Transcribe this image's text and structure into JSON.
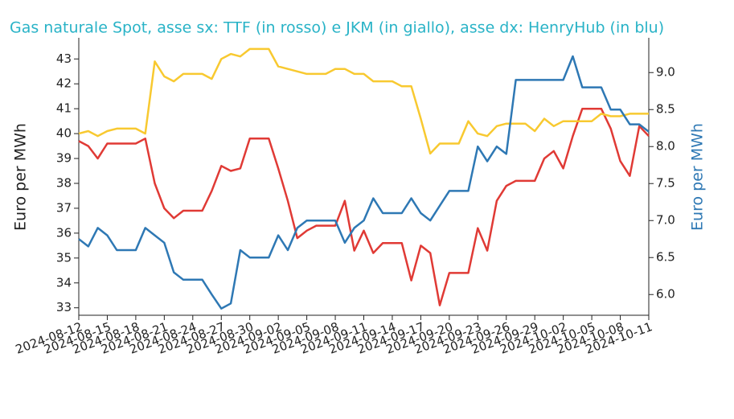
{
  "chart_data": {
    "type": "line",
    "title": "Gas naturale Spot, asse sx: TTF (in rosso) e JKM (in giallo), asse dx: HenryHub (in blu)",
    "y_label": "Euro per MWh",
    "y2_label": "Euro per MWh",
    "x": [
      "2024-08-12",
      "2024-08-13",
      "2024-08-14",
      "2024-08-15",
      "2024-08-16",
      "2024-08-17",
      "2024-08-18",
      "2024-08-19",
      "2024-08-20",
      "2024-08-21",
      "2024-08-22",
      "2024-08-23",
      "2024-08-24",
      "2024-08-25",
      "2024-08-26",
      "2024-08-27",
      "2024-08-28",
      "2024-08-29",
      "2024-08-30",
      "2024-08-31",
      "2024-09-01",
      "2024-09-02",
      "2024-09-03",
      "2024-09-04",
      "2024-09-05",
      "2024-09-06",
      "2024-09-07",
      "2024-09-08",
      "2024-09-09",
      "2024-09-10",
      "2024-09-11",
      "2024-09-12",
      "2024-09-13",
      "2024-09-14",
      "2024-09-15",
      "2024-09-16",
      "2024-09-17",
      "2024-09-18",
      "2024-09-19",
      "2024-09-20",
      "2024-09-21",
      "2024-09-22",
      "2024-09-23",
      "2024-09-24",
      "2024-09-25",
      "2024-09-26",
      "2024-09-27",
      "2024-09-28",
      "2024-09-29",
      "2024-09-30",
      "2024-10-01",
      "2024-10-02",
      "2024-10-03",
      "2024-10-04",
      "2024-10-05",
      "2024-10-06",
      "2024-10-07",
      "2024-10-08",
      "2024-10-09",
      "2024-10-10",
      "2024-10-11"
    ],
    "series": [
      {
        "name": "TTF",
        "color": "#e03a35",
        "values": [
          39.7,
          39.5,
          39.0,
          39.6,
          39.6,
          39.6,
          39.6,
          39.8,
          38.0,
          37.0,
          36.6,
          36.9,
          36.9,
          36.9,
          37.7,
          38.7,
          38.5,
          38.6,
          39.8,
          39.8,
          39.8,
          38.6,
          37.3,
          35.8,
          36.1,
          36.3,
          36.3,
          36.3,
          37.3,
          35.3,
          36.1,
          35.2,
          35.6,
          35.6,
          35.6,
          34.1,
          35.5,
          35.2,
          33.1,
          34.4,
          34.4,
          34.4,
          36.2,
          35.3,
          37.3,
          37.9,
          38.1,
          38.1,
          38.1,
          39.0,
          39.3,
          38.6,
          39.9,
          41.0,
          41.0,
          41.0,
          40.2,
          38.9,
          38.3,
          40.3,
          39.9
        ]
      },
      {
        "name": "JKM",
        "color": "#f8c930",
        "values": [
          40.0,
          40.1,
          39.9,
          40.1,
          40.2,
          40.2,
          40.2,
          40.0,
          42.9,
          42.3,
          42.1,
          42.4,
          42.4,
          42.4,
          42.2,
          43.0,
          43.2,
          43.1,
          43.4,
          43.4,
          43.4,
          42.7,
          42.6,
          42.5,
          42.4,
          42.4,
          42.4,
          42.6,
          42.6,
          42.4,
          42.4,
          42.1,
          42.1,
          42.1,
          41.9,
          41.9,
          40.6,
          39.2,
          39.6,
          39.6,
          39.6,
          40.5,
          40.0,
          39.9,
          40.3,
          40.4,
          40.4,
          40.4,
          40.1,
          40.6,
          40.3,
          40.5,
          40.5,
          40.5,
          40.5,
          40.8,
          40.7,
          40.7,
          40.8,
          40.8,
          40.8
        ]
      },
      {
        "name": "HenryHub",
        "color": "#2e78b4",
        "axis": "y2",
        "values": [
          6.75,
          6.65,
          6.9,
          6.8,
          6.6,
          6.6,
          6.6,
          6.9,
          6.8,
          6.7,
          6.3,
          6.2,
          6.2,
          6.2,
          6.0,
          5.81,
          5.88,
          6.6,
          6.5,
          6.5,
          6.5,
          6.8,
          6.6,
          6.9,
          7.0,
          7.0,
          7.0,
          7.0,
          6.7,
          6.9,
          7.0,
          7.3,
          7.1,
          7.1,
          7.1,
          7.3,
          7.1,
          7.0,
          7.2,
          7.4,
          7.4,
          7.4,
          8.0,
          7.8,
          8.0,
          7.9,
          8.9,
          8.9,
          8.9,
          8.9,
          8.9,
          8.9,
          9.22,
          8.8,
          8.8,
          8.8,
          8.5,
          8.5,
          8.3,
          8.3,
          8.2
        ]
      }
    ],
    "xlim": [
      "2024-08-12",
      "2024-10-11"
    ],
    "xticks": [
      "2024-08-12",
      "2024-08-15",
      "2024-08-18",
      "2024-08-21",
      "2024-08-24",
      "2024-08-27",
      "2024-08-30",
      "2024-09-02",
      "2024-09-05",
      "2024-09-08",
      "2024-09-11",
      "2024-09-14",
      "2024-09-17",
      "2024-09-20",
      "2024-09-23",
      "2024-09-26",
      "2024-09-29",
      "2024-10-02",
      "2024-10-05",
      "2024-10-08",
      "2024-10-11"
    ],
    "ylim": [
      32.7,
      43.85
    ],
    "yticks": [
      33,
      34,
      35,
      36,
      37,
      38,
      39,
      40,
      41,
      42,
      43
    ],
    "y2lim": [
      5.72,
      9.47
    ],
    "y2ticks": [
      {
        "value": 6,
        "label": "6.0"
      },
      6.5,
      {
        "value": 7,
        "label": "7.0"
      },
      7.5,
      {
        "value": 8,
        "label": "8.0"
      },
      8.5,
      {
        "value": 9,
        "label": "9.0"
      }
    ],
    "title_color": "#29b3c7",
    "y2_color": "#2e78b4"
  }
}
